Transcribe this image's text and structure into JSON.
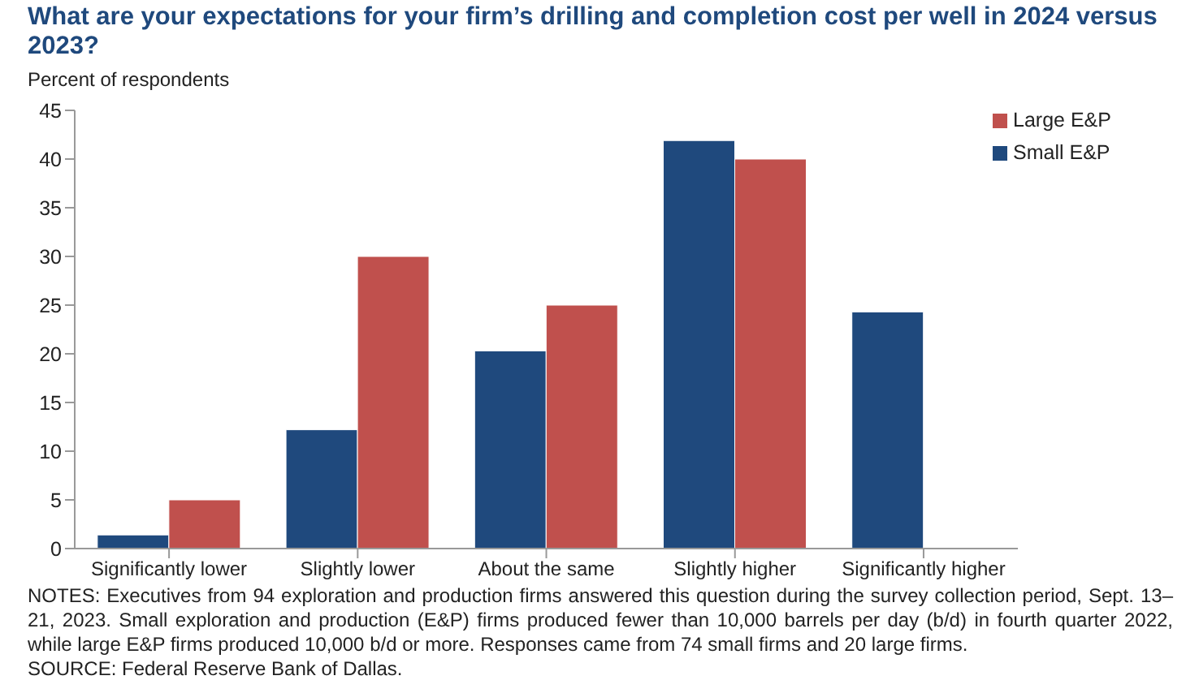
{
  "chart_data": {
    "type": "bar",
    "title": "What are your expectations for your firm’s drilling and completion cost per well in 2024 versus 2023?",
    "ylabel": "Percent of respondents",
    "categories": [
      "Significantly lower",
      "Slightly lower",
      "About the same",
      "Slightly higher",
      "Significantly higher"
    ],
    "series": [
      {
        "name": "Small E&P",
        "color": "#1f497d",
        "values": [
          1.4,
          12.2,
          20.3,
          41.9,
          24.3
        ]
      },
      {
        "name": "Large E&P",
        "color": "#c0504d",
        "values": [
          5,
          30,
          25,
          40,
          0
        ]
      }
    ],
    "ylim": [
      0,
      45
    ],
    "yticks": [
      0,
      5,
      10,
      15,
      20,
      25,
      30,
      35,
      40,
      45
    ],
    "grid": false,
    "legend": "top right",
    "annotations": [
      "NOTES: Executives from 94 exploration and production firms answered this question during the survey collection period, Sept. 13–21, 2023. Small exploration and production (E&P) firms produced fewer than 10,000 barrels per day (b/d) in fourth quarter 2022, while large E&P firms produced 10,000 b/d or more. Responses came from 74 small firms and 20 large firms.",
      "SOURCE: Federal Reserve Bank of Dallas."
    ]
  }
}
